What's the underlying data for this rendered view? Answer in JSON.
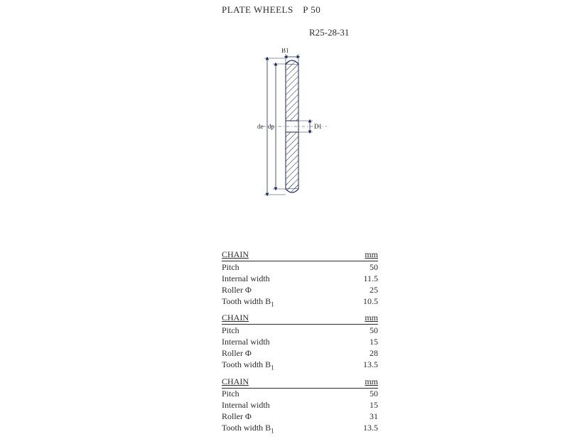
{
  "title": "PLATE WHEELS P 50",
  "subtitle": "R25-28-31",
  "diagram": {
    "labels": {
      "B1": "B1",
      "de": "de",
      "dp": "dp",
      "D1": "D1"
    },
    "colors": {
      "stroke": "#1a2a5a",
      "hatch": "#1a2a5a",
      "fill": "#ffffff",
      "text": "#2b2b2b"
    },
    "stroke_width": 1
  },
  "tables": [
    {
      "header": {
        "left": "CHAIN",
        "right": "mm"
      },
      "rows": [
        {
          "label": "Pitch",
          "value": "50"
        },
        {
          "label": "Internal width",
          "value": "11.5"
        },
        {
          "label": "Roller Φ",
          "value": "25"
        },
        {
          "label": "Tooth width B",
          "sub": "1",
          "value": "10.5"
        }
      ]
    },
    {
      "header": {
        "left": "CHAIN",
        "right": "mm"
      },
      "rows": [
        {
          "label": "Pitch",
          "value": "50"
        },
        {
          "label": "Internal width",
          "value": "15"
        },
        {
          "label": "Roller Φ",
          "value": "28"
        },
        {
          "label": "Tooth width B",
          "sub": "1",
          "value": "13.5"
        }
      ]
    },
    {
      "header": {
        "left": "CHAIN",
        "right": "mm"
      },
      "rows": [
        {
          "label": "Pitch",
          "value": "50"
        },
        {
          "label": "Internal width",
          "value": "15"
        },
        {
          "label": "Roller Φ",
          "value": "31"
        },
        {
          "label": "Tooth width B",
          "sub": "1",
          "value": "13.5"
        }
      ]
    }
  ]
}
